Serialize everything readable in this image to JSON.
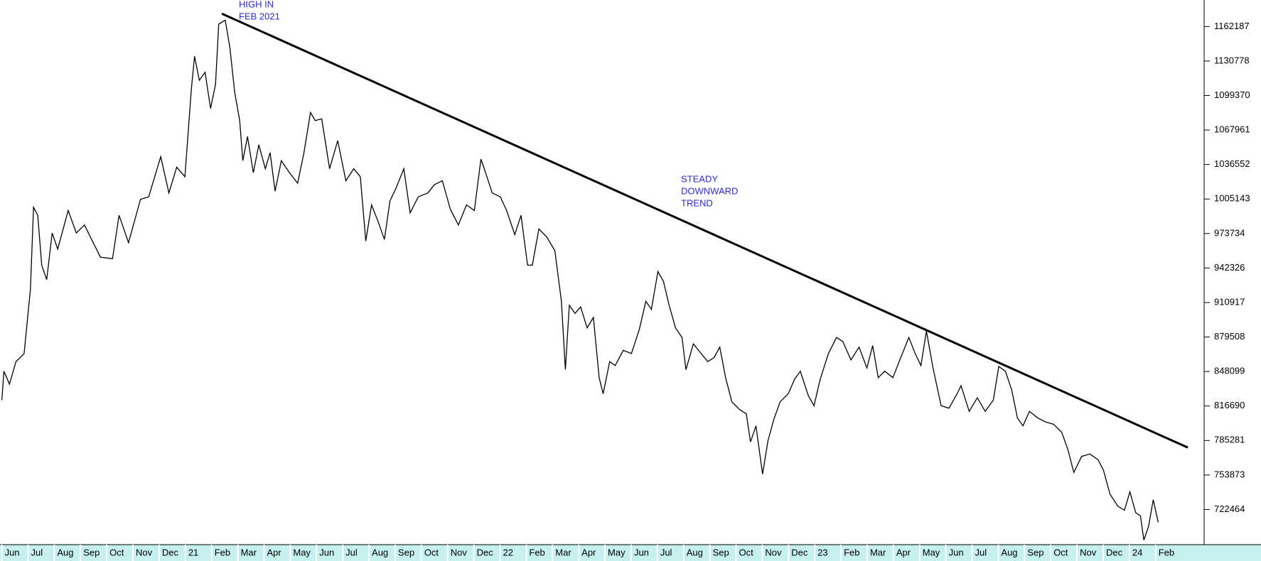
{
  "chart_data": {
    "type": "line",
    "annotations": [
      {
        "lines": [
          "HIGH IN",
          "FEB 2021"
        ],
        "color": "#2b2bdc"
      },
      {
        "lines": [
          "STEADY",
          "DOWNWARD",
          "TREND"
        ],
        "color": "#2b2bdc"
      }
    ],
    "x": [
      0,
      0.08,
      0.29,
      0.54,
      0.85,
      1.09,
      1.21,
      1.37,
      1.52,
      1.71,
      1.92,
      2.13,
      2.53,
      2.84,
      3.15,
      3.45,
      3.76,
      4.22,
      4.47,
      4.83,
      5.29,
      5.6,
      6.06,
      6.37,
      6.67,
      6.98,
      7.23,
      7.35,
      7.53,
      7.75,
      7.96,
      8.15,
      8.27,
      8.52,
      8.7,
      8.88,
      9.07,
      9.19,
      9.37,
      9.59,
      9.8,
      10.05,
      10.23,
      10.42,
      10.66,
      10.97,
      11.28,
      11.52,
      11.77,
      11.95,
      12.2,
      12.5,
      12.81,
      13.12,
      13.42,
      13.67,
      13.88,
      14.1,
      14.34,
      14.59,
      14.8,
      15.02,
      15.33,
      15.57,
      15.88,
      16.25,
      16.49,
      16.8,
      17.1,
      17.41,
      17.72,
      18.02,
      18.27,
      18.48,
      18.7,
      19.01,
      19.25,
      19.56,
      19.8,
      20.05,
      20.23,
      20.48,
      20.78,
      21.09,
      21.34,
      21.49,
      21.64,
      21.86,
      22.07,
      22.32,
      22.56,
      22.78,
      22.93,
      23.18,
      23.39,
      23.7,
      24.01,
      24.31,
      24.56,
      24.77,
      25.02,
      25.23,
      25.45,
      25.69,
      25.94,
      26.09,
      26.37,
      26.67,
      26.92,
      27.16,
      27.38,
      27.6,
      27.84,
      28.15,
      28.39,
      28.55,
      28.76,
      29.01,
      29.22,
      29.44,
      29.68,
      29.99,
      30.23,
      30.45,
      30.75,
      30.97,
      31.21,
      31.52,
      31.83,
      32.07,
      32.38,
      32.69,
      32.99,
      33.21,
      33.42,
      33.67,
      33.98,
      34.28,
      34.59,
      34.83,
      35.05,
      35.26,
      35.51,
      35.82,
      36.12,
      36.43,
      36.58,
      36.89,
      37.2,
      37.5,
      37.81,
      38.02,
      38.27,
      38.51,
      38.73,
      38.94,
      39.19,
      39.5,
      39.8,
      40.11,
      40.42,
      40.66,
      40.88,
      41.18,
      41.49,
      41.8,
      42.01,
      42.26,
      42.56,
      42.81,
      43.02,
      43.24,
      43.42,
      43.55,
      43.73,
      43.91,
      44.1
    ],
    "series": [
      {
        "color": "#000000",
        "values": [
          822000,
          848300,
          836600,
          857100,
          864400,
          923000,
          997600,
          990300,
          944900,
          931700,
          974200,
          959500,
          994700,
          974200,
          981500,
          966900,
          952200,
          950800,
          990300,
          965400,
          1004900,
          1007100,
          1043700,
          1010700,
          1034200,
          1025400,
          1105900,
          1135100,
          1113200,
          1120500,
          1087600,
          1109500,
          1164400,
          1168000,
          1142400,
          1102200,
          1076600,
          1040000,
          1062000,
          1029000,
          1054600,
          1032700,
          1047300,
          1012200,
          1040000,
          1029000,
          1019500,
          1047300,
          1083900,
          1076600,
          1078100,
          1032700,
          1058300,
          1021700,
          1032700,
          1025400,
          966900,
          999800,
          985100,
          968300,
          1003400,
          1014400,
          1032700,
          992500,
          1007100,
          1010700,
          1018100,
          1021700,
          996100,
          981500,
          999800,
          994700,
          1041500,
          1026800,
          1010700,
          1007100,
          994700,
          972700,
          990300,
          944900,
          944900,
          977800,
          970500,
          958100,
          912000,
          849800,
          908300,
          901000,
          906900,
          887800,
          897300,
          842500,
          827800,
          857100,
          853500,
          867400,
          864400,
          886400,
          912000,
          904700,
          939100,
          930300,
          908300,
          887800,
          879100,
          849800,
          873200,
          864400,
          857100,
          860800,
          870300,
          842500,
          820500,
          813200,
          809600,
          784000,
          798600,
          754700,
          785400,
          804400,
          820500,
          827800,
          841000,
          848300,
          826400,
          816900,
          841000,
          864400,
          879100,
          875400,
          858600,
          870300,
          851300,
          871700,
          842500,
          848300,
          842500,
          860800,
          879100,
          864400,
          853500,
          884900,
          851300,
          816900,
          814700,
          827800,
          835200,
          811800,
          824200,
          811800,
          822000,
          852700,
          848300,
          831500,
          805900,
          798600,
          811800,
          805900,
          802200,
          800000,
          792700,
          776600,
          756200,
          770800,
          773000,
          767900,
          758300,
          736400,
          725400,
          721800,
          738600,
          719600,
          716600,
          694700,
          707100,
          731300,
          710800
        ]
      }
    ],
    "trend_line": {
      "color": "#000000",
      "x": [
        8.39,
        45.23
      ],
      "values": [
        1173900,
        778800
      ]
    },
    "xlim": [
      -0.07,
      45.85
    ],
    "xticks": [
      {
        "value": 0,
        "label": "Jun"
      },
      {
        "value": 1,
        "label": "Jul"
      },
      {
        "value": 2,
        "label": "Aug"
      },
      {
        "value": 3,
        "label": "Sep"
      },
      {
        "value": 4,
        "label": "Oct"
      },
      {
        "value": 5,
        "label": "Nov"
      },
      {
        "value": 6,
        "label": "Dec"
      },
      {
        "value": 7,
        "label": "21"
      },
      {
        "value": 8,
        "label": "Feb"
      },
      {
        "value": 9,
        "label": "Mar"
      },
      {
        "value": 10,
        "label": "Apr"
      },
      {
        "value": 11,
        "label": "May"
      },
      {
        "value": 12,
        "label": "Jun"
      },
      {
        "value": 13,
        "label": "Jul"
      },
      {
        "value": 14,
        "label": "Aug"
      },
      {
        "value": 15,
        "label": "Sep"
      },
      {
        "value": 16,
        "label": "Oct"
      },
      {
        "value": 17,
        "label": "Nov"
      },
      {
        "value": 18,
        "label": "Dec"
      },
      {
        "value": 19,
        "label": "22"
      },
      {
        "value": 20,
        "label": "Feb"
      },
      {
        "value": 21,
        "label": "Mar"
      },
      {
        "value": 22,
        "label": "Apr"
      },
      {
        "value": 23,
        "label": "May"
      },
      {
        "value": 24,
        "label": "Jun"
      },
      {
        "value": 25,
        "label": "Jul"
      },
      {
        "value": 26,
        "label": "Aug"
      },
      {
        "value": 27,
        "label": "Sep"
      },
      {
        "value": 28,
        "label": "Oct"
      },
      {
        "value": 29,
        "label": "Nov"
      },
      {
        "value": 30,
        "label": "Dec"
      },
      {
        "value": 31,
        "label": "23"
      },
      {
        "value": 32,
        "label": "Feb"
      },
      {
        "value": 33,
        "label": "Mar"
      },
      {
        "value": 34,
        "label": "Apr"
      },
      {
        "value": 35,
        "label": "May"
      },
      {
        "value": 36,
        "label": "Jun"
      },
      {
        "value": 37,
        "label": "Jul"
      },
      {
        "value": 38,
        "label": "Aug"
      },
      {
        "value": 39,
        "label": "Sep"
      },
      {
        "value": 40,
        "label": "Oct"
      },
      {
        "value": 41,
        "label": "Nov"
      },
      {
        "value": 42,
        "label": "Dec"
      },
      {
        "value": 43,
        "label": "24"
      },
      {
        "value": 44,
        "label": "Feb"
      }
    ],
    "ylim": [
      691735,
      1186331
    ],
    "yticks": [
      722464,
      753873,
      785281,
      816690,
      848099,
      879508,
      910917,
      942326,
      973734,
      1005143,
      1036552,
      1067961,
      1099370,
      1130778,
      1162187
    ],
    "grid": false
  }
}
